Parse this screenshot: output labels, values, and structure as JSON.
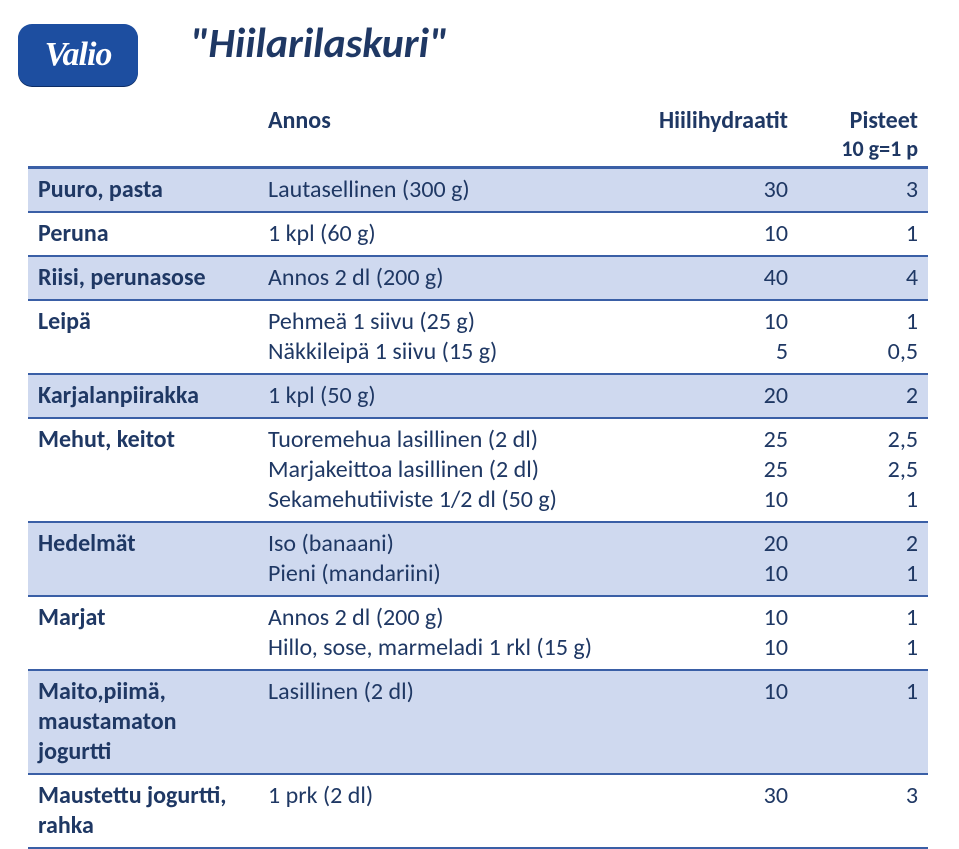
{
  "brand": {
    "name": "Valio"
  },
  "title": "\"Hiilarilaskuri\"",
  "headers": {
    "col_annos": "Annos",
    "col_carbs": "Hiilihydraatit",
    "col_points": "Pisteet",
    "col_points_sub": "10 g=1 p"
  },
  "style": {
    "accent": "#1f3864",
    "rule": "#3a5fa6",
    "alt_row_bg": "#cfd9ef",
    "page_bg": "#ffffff",
    "logo_bg": "#1d4ea0",
    "title_fontsize": 42,
    "cell_fontsize": 24,
    "header_fontsize": 24
  },
  "rows": {
    "puuro": {
      "food": "Puuro, pasta",
      "portion": "Lautasellinen (300 g)",
      "carbs": "30",
      "pts": "3"
    },
    "peruna": {
      "food": "Peruna",
      "portion": "1 kpl (60 g)",
      "carbs": "10",
      "pts": "1"
    },
    "riisi": {
      "food": "Riisi, perunasose",
      "portion": "Annos 2 dl (200 g)",
      "carbs": "40",
      "pts": "4"
    },
    "leipa": {
      "food": "Leipä",
      "portion1": "Pehmeä 1 siivu (25 g)",
      "carbs1": "10",
      "pts1": "1",
      "portion2": "Näkkileipä 1 siivu (15 g)",
      "carbs2": "5",
      "pts2": "0,5"
    },
    "karja": {
      "food": "Karjalanpiirakka",
      "portion": "1 kpl (50 g)",
      "carbs": "20",
      "pts": "2"
    },
    "mehut": {
      "food": "Mehut, keitot",
      "portion1": "Tuoremehua lasillinen (2 dl)",
      "carbs1": "25",
      "pts1": "2,5",
      "portion2": "Marjakeittoa lasillinen (2 dl)",
      "carbs2": "25",
      "pts2": "2,5",
      "portion3": "Sekamehutiiviste 1/2 dl (50 g)",
      "carbs3": "10",
      "pts3": "1"
    },
    "hedel": {
      "food": "Hedelmät",
      "portion1": "Iso  (banaani)",
      "carbs1": "20",
      "pts1": "2",
      "portion2": "Pieni (mandariini)",
      "carbs2": "10",
      "pts2": "1"
    },
    "marjat": {
      "food": "Marjat",
      "portion1": "Annos 2 dl (200 g)",
      "carbs1": "10",
      "pts1": "1",
      "portion2": "Hillo, sose, marmeladi 1 rkl (15 g)",
      "carbs2": "10",
      "pts2": "1"
    },
    "maito": {
      "food": "Maito,piimä, maustamaton jogurtti",
      "portion": "Lasillinen (2 dl)",
      "carbs": "10",
      "pts": "1"
    },
    "mjog": {
      "food": "Maustettu jogurtti, rahka",
      "portion": "1 prk (2 dl)",
      "carbs": "30",
      "pts": "3"
    }
  }
}
